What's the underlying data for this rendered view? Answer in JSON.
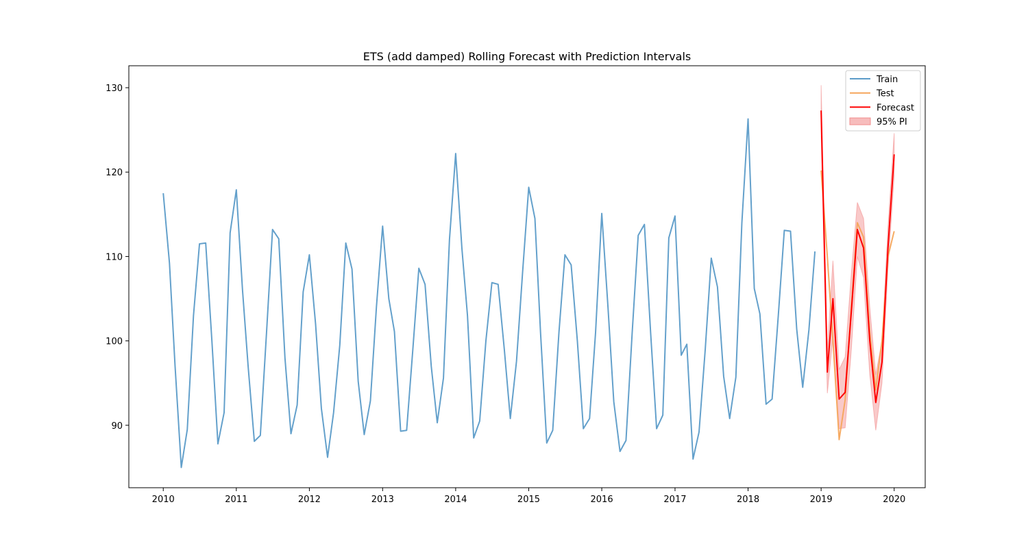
{
  "chart_data": {
    "type": "line",
    "title": "ETS (add damped) Rolling Forecast with Prediction Intervals",
    "xlabel": "",
    "ylabel": "",
    "x_axis": "date",
    "xlim": [
      "2009-07-13",
      "2020-06-04"
    ],
    "ylim": [
      82.6,
      132.6
    ],
    "x_ticks": [
      "2010",
      "2011",
      "2012",
      "2013",
      "2014",
      "2015",
      "2016",
      "2017",
      "2018",
      "2019",
      "2020"
    ],
    "y_ticks": [
      90,
      100,
      110,
      120,
      130
    ],
    "grid": false,
    "legend_position": "top-right",
    "legend": [
      "Train",
      "Test",
      "Forecast",
      "95% PI"
    ],
    "colors": {
      "train": "#5b9bc8",
      "test": "#f5a65b",
      "forecast": "#ff0000",
      "pi_fill": "#f7bcbc",
      "pi_edge": "#f28e8e"
    },
    "series": [
      {
        "name": "Train",
        "x": [
          "2010-01",
          "2010-02",
          "2010-03",
          "2010-04",
          "2010-05",
          "2010-06",
          "2010-07",
          "2010-08",
          "2010-09",
          "2010-10",
          "2010-11",
          "2010-12",
          "2011-01",
          "2011-02",
          "2011-03",
          "2011-04",
          "2011-05",
          "2011-06",
          "2011-07",
          "2011-08",
          "2011-09",
          "2011-10",
          "2011-11",
          "2011-12",
          "2012-01",
          "2012-02",
          "2012-03",
          "2012-04",
          "2012-05",
          "2012-06",
          "2012-07",
          "2012-08",
          "2012-09",
          "2012-10",
          "2012-11",
          "2012-12",
          "2013-01",
          "2013-02",
          "2013-03",
          "2013-04",
          "2013-05",
          "2013-06",
          "2013-07",
          "2013-08",
          "2013-09",
          "2013-10",
          "2013-11",
          "2013-12",
          "2014-01",
          "2014-02",
          "2014-03",
          "2014-04",
          "2014-05",
          "2014-06",
          "2014-07",
          "2014-08",
          "2014-09",
          "2014-10",
          "2014-11",
          "2014-12",
          "2015-01",
          "2015-02",
          "2015-03",
          "2015-04",
          "2015-05",
          "2015-06",
          "2015-07",
          "2015-08",
          "2015-09",
          "2015-10",
          "2015-11",
          "2015-12",
          "2016-01",
          "2016-02",
          "2016-03",
          "2016-04",
          "2016-05",
          "2016-06",
          "2016-07",
          "2016-08",
          "2016-09",
          "2016-10",
          "2016-11",
          "2016-12",
          "2017-01",
          "2017-02",
          "2017-03",
          "2017-04",
          "2017-05",
          "2017-06",
          "2017-07",
          "2017-08",
          "2017-09",
          "2017-10",
          "2017-11",
          "2017-12",
          "2018-01",
          "2018-02",
          "2018-03",
          "2018-04",
          "2018-05",
          "2018-06",
          "2018-07",
          "2018-08",
          "2018-09",
          "2018-10",
          "2018-11",
          "2018-12"
        ],
        "y": [
          117.5,
          109.2,
          97.0,
          85.0,
          89.5,
          103.0,
          111.5,
          111.6,
          100.0,
          87.8,
          91.5,
          112.8,
          117.9,
          106.0,
          97.0,
          88.1,
          88.8,
          101.0,
          113.2,
          112.1,
          98.0,
          89.0,
          92.4,
          105.8,
          110.2,
          102.0,
          92.0,
          86.2,
          91.5,
          99.5,
          111.6,
          108.5,
          95.2,
          88.9,
          92.9,
          104.0,
          113.6,
          105.0,
          101.1,
          89.3,
          89.4,
          99.0,
          108.6,
          106.7,
          97.0,
          90.3,
          95.6,
          112.0,
          122.2,
          111.0,
          103.0,
          88.5,
          90.5,
          100.0,
          106.9,
          106.7,
          99.0,
          90.8,
          97.6,
          108.0,
          118.2,
          114.5,
          101.0,
          87.9,
          89.4,
          101.0,
          110.2,
          109.0,
          100.0,
          89.6,
          90.8,
          101.0,
          115.1,
          104.0,
          92.8,
          86.9,
          88.2,
          101.0,
          112.5,
          113.8,
          101.0,
          89.6,
          91.2,
          112.2,
          114.8,
          98.3,
          99.6,
          86.0,
          89.2,
          99.0,
          109.8,
          106.4,
          95.8,
          90.8,
          95.7,
          114.0,
          126.3,
          106.2,
          103.2,
          92.5,
          93.1,
          103.0,
          113.1,
          113.0,
          101.4,
          94.5,
          101.3,
          110.6
        ]
      },
      {
        "name": "Test",
        "x": [
          "2019-01",
          "2019-02",
          "2019-03",
          "2019-04",
          "2019-05",
          "2019-06",
          "2019-07",
          "2019-08",
          "2019-09",
          "2019-10",
          "2019-11",
          "2019-12",
          "2020-01"
        ],
        "y": [
          120.2,
          110.0,
          100.0,
          88.3,
          93.0,
          104.0,
          114.0,
          112.3,
          101.0,
          94.2,
          100.0,
          110.0,
          113.0
        ]
      },
      {
        "name": "Forecast",
        "x": [
          "2019-01",
          "2019-02",
          "2019-03",
          "2019-04",
          "2019-05",
          "2019-06",
          "2019-07",
          "2019-08",
          "2019-09",
          "2019-10",
          "2019-11",
          "2019-12",
          "2020-01"
        ],
        "y": [
          127.3,
          96.3,
          105.0,
          93.1,
          93.9,
          103.5,
          113.2,
          111.0,
          100.0,
          92.7,
          97.5,
          111.0,
          122.1
        ]
      },
      {
        "name": "95% PI",
        "x": [
          "2019-01",
          "2019-02",
          "2019-03",
          "2019-04",
          "2019-05",
          "2019-06",
          "2019-07",
          "2019-08",
          "2019-09",
          "2019-10",
          "2019-11",
          "2019-12",
          "2020-01"
        ],
        "lower": [
          124.4,
          93.8,
          100.5,
          89.6,
          89.7,
          99.0,
          110.0,
          107.5,
          96.0,
          89.4,
          95.0,
          108.5,
          119.6
        ],
        "upper": [
          130.3,
          98.8,
          109.5,
          96.6,
          98.1,
          108.0,
          116.4,
          114.5,
          104.0,
          96.0,
          100.0,
          113.5,
          124.6
        ]
      }
    ]
  }
}
